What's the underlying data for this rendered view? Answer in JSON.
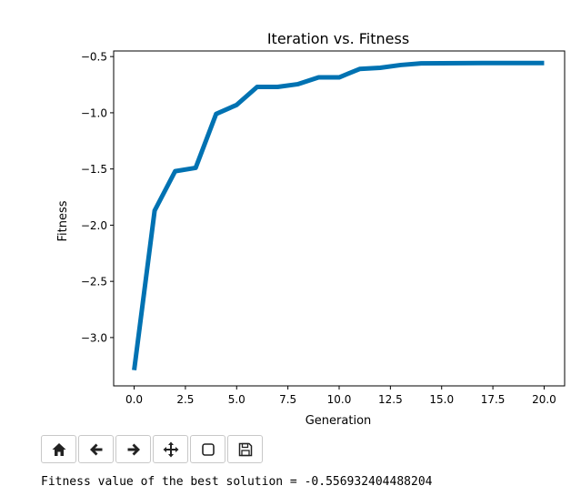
{
  "chart_data": {
    "type": "line",
    "title": "Iteration vs. Fitness",
    "xlabel": "Generation",
    "ylabel": "Fitness",
    "xlim": [
      -1.0,
      21.0
    ],
    "ylim": [
      -3.43,
      -0.45
    ],
    "xticks": [
      0.0,
      2.5,
      5.0,
      7.5,
      10.0,
      12.5,
      15.0,
      17.5,
      20.0
    ],
    "xtick_labels": [
      "0.0",
      "2.5",
      "5.0",
      "7.5",
      "10.0",
      "12.5",
      "15.0",
      "17.5",
      "20.0"
    ],
    "yticks": [
      -3.0,
      -2.5,
      -2.0,
      -1.5,
      -1.0,
      -0.5
    ],
    "ytick_labels": [
      "−3.0",
      "−2.5",
      "−2.0",
      "−1.5",
      "−1.0",
      "−0.5"
    ],
    "grid": false,
    "line_color": "#0072b2",
    "series": [
      {
        "x": [
          0,
          1,
          2,
          3,
          4,
          5,
          6,
          7,
          8,
          9,
          10,
          11,
          12,
          13,
          14,
          15,
          16,
          17,
          18,
          19,
          20
        ],
        "values": [
          -3.29,
          -1.87,
          -1.52,
          -1.49,
          -1.01,
          -0.93,
          -0.77,
          -0.77,
          -0.745,
          -0.685,
          -0.685,
          -0.61,
          -0.6,
          -0.575,
          -0.56,
          -0.559,
          -0.558,
          -0.557,
          -0.557,
          -0.557,
          -0.557
        ]
      }
    ]
  },
  "toolbar": {
    "buttons": [
      {
        "name": "home",
        "icon": "home-icon"
      },
      {
        "name": "back",
        "icon": "arrow-left-icon"
      },
      {
        "name": "forward",
        "icon": "arrow-right-icon"
      },
      {
        "name": "pan",
        "icon": "move-icon"
      },
      {
        "name": "zoom",
        "icon": "zoom-rect-icon"
      },
      {
        "name": "save",
        "icon": "save-icon"
      }
    ]
  },
  "result": {
    "text": "Fitness value of the best solution = -0.556932404488204"
  }
}
